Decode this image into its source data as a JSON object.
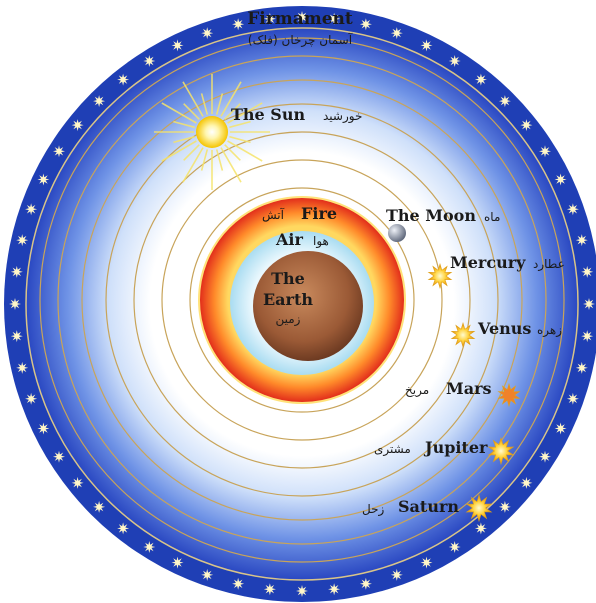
{
  "firmament": {
    "label": "Firmament",
    "label_fa": "آسمان چرخان (فلک)"
  },
  "sun": {
    "label": "The Sun",
    "label_fa": "خورشید"
  },
  "moon": {
    "label": "The Moon",
    "label_fa": "ماه"
  },
  "mercury": {
    "label": "Mercury",
    "label_fa": "عطارد"
  },
  "venus": {
    "label": "Venus",
    "label_fa": "زهره"
  },
  "mars": {
    "label": "Mars",
    "label_fa": "مریخ"
  },
  "jupiter": {
    "label": "Jupiter",
    "label_fa": "مشتری"
  },
  "saturn": {
    "label": "Saturn",
    "label_fa": "زحل"
  },
  "fire": {
    "label": "Fire",
    "label_fa": "آتش"
  },
  "air": {
    "label": "Air",
    "label_fa": "هوا"
  },
  "earth": {
    "label_line1": "The",
    "label_line2": "Earth",
    "label_fa": "زمین"
  },
  "colors": {
    "firmament_blue": "#1f3fb5",
    "ring_gold": "#c8a45a",
    "fire_red": "#e8321e",
    "air_blue": "#bfe6f5",
    "earth_brown": "#9b5a36"
  }
}
